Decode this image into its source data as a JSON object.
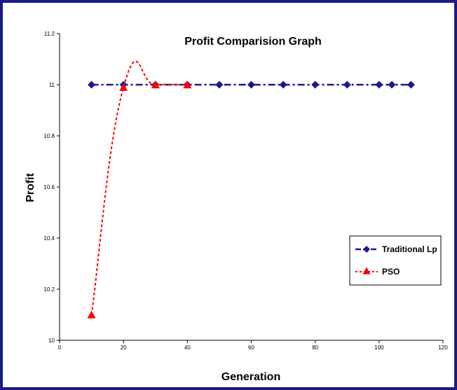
{
  "chart_data": {
    "type": "line",
    "title": "Profit Comparision Graph",
    "xlabel": "Generation",
    "ylabel": "Profit",
    "xlim": [
      0,
      120
    ],
    "ylim": [
      10,
      11.2
    ],
    "xticks": [
      "0",
      "20",
      "40",
      "60",
      "80",
      "100",
      "120"
    ],
    "yticks": [
      "10",
      "10.2",
      "10.4",
      "10.6",
      "10.8",
      "11",
      "11.2"
    ],
    "grid": false,
    "legend_position": "right",
    "series": [
      {
        "name": "Traditional Lp",
        "color": "#1a1a8c",
        "marker": "diamond",
        "line_style": "dash-dot",
        "x": [
          10,
          20,
          30,
          40,
          50,
          60,
          70,
          80,
          90,
          100,
          104,
          110
        ],
        "y": [
          11,
          11,
          11,
          11,
          11,
          11,
          11,
          11,
          11,
          11,
          11,
          11
        ]
      },
      {
        "name": "PSO",
        "color": "#ff0000",
        "marker": "triangle",
        "line_style": "dotted",
        "x": [
          10,
          20,
          30,
          40
        ],
        "y": [
          10.1,
          10.99,
          11,
          11
        ]
      }
    ]
  }
}
